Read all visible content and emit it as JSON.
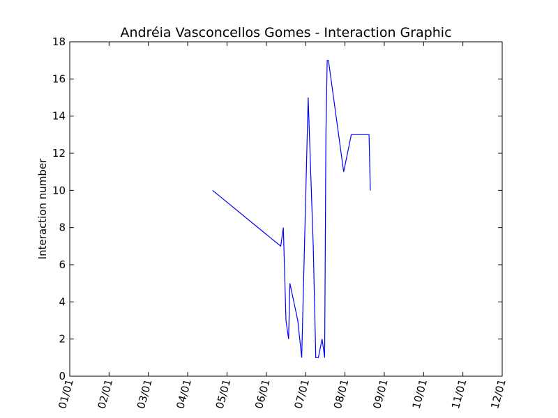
{
  "chart_data": {
    "type": "line",
    "title": "Andréia Vasconcellos Gomes - Interaction Graphic",
    "xlabel": "",
    "ylabel": "Interaction number",
    "xlim": [
      "01/01",
      "12/01"
    ],
    "ylim": [
      0,
      18
    ],
    "x_ticks": [
      "01/01",
      "02/01",
      "03/01",
      "04/01",
      "05/01",
      "06/01",
      "07/01",
      "08/01",
      "09/01",
      "10/01",
      "11/01",
      "12/01"
    ],
    "y_ticks": [
      0,
      2,
      4,
      6,
      8,
      10,
      12,
      14,
      16,
      18
    ],
    "grid": false,
    "legend": "none",
    "series": [
      {
        "color": "#0000ff",
        "x": [
          "04/20",
          "06/12",
          "06/14",
          "06/16",
          "06/18",
          "06/19",
          "06/25",
          "06/28",
          "07/03",
          "07/07",
          "07/09",
          "07/11",
          "07/14",
          "07/16",
          "07/17",
          "07/18",
          "07/19",
          "07/31",
          "08/03",
          "08/06",
          "08/20",
          "08/21"
        ],
        "y": [
          10,
          7,
          8,
          3,
          2,
          5,
          3,
          1,
          15,
          7,
          1,
          1,
          2,
          1,
          13,
          17,
          17,
          11,
          12,
          13,
          13,
          10
        ]
      }
    ]
  }
}
